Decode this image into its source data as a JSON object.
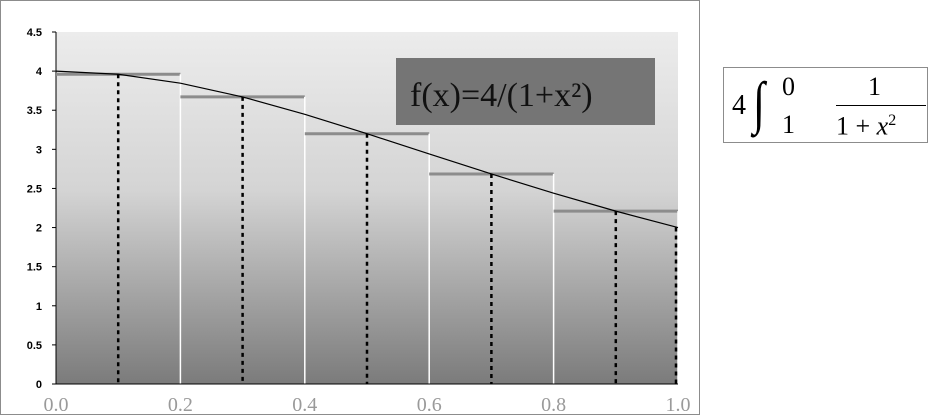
{
  "chart_data": {
    "type": "line",
    "function": {
      "annotation": "f(x)=4/(1+x²)"
    },
    "x_range": [
      0,
      1
    ],
    "ylim": [
      0,
      4.5
    ],
    "y_ticks": [
      "0",
      "0.5",
      "1",
      "1.5",
      "2",
      "2.5",
      "3",
      "3.5",
      "4",
      "4.5"
    ],
    "x_ticks": [
      "0.0",
      "0.2",
      "0.4",
      "0.6",
      "0.8",
      "1.0"
    ],
    "series": [
      {
        "x": [
          0,
          0.1,
          0.2,
          0.3,
          0.4,
          0.5,
          0.6,
          0.7,
          0.8,
          0.9,
          1.0
        ],
        "y": [
          4.0,
          3.96,
          3.846,
          3.67,
          3.448,
          3.2,
          2.941,
          2.685,
          2.439,
          2.21,
          2.0
        ]
      }
    ],
    "step_rectangles": [
      {
        "x0": 0.0,
        "x1": 0.2,
        "height": 3.96
      },
      {
        "x0": 0.2,
        "x1": 0.4,
        "height": 3.67
      },
      {
        "x0": 0.4,
        "x1": 0.6,
        "height": 3.2
      },
      {
        "x0": 0.6,
        "x1": 0.8,
        "height": 2.685
      },
      {
        "x0": 0.8,
        "x1": 1.0,
        "height": 2.21
      }
    ],
    "midpoints": [
      0.1,
      0.3,
      0.5,
      0.7,
      0.9
    ],
    "colors": {
      "step": "#8c8c8c",
      "curve": "#000000",
      "annotation_bg": "#757575"
    }
  },
  "formula": {
    "coefficient": "4",
    "integral_sign": "∫",
    "upper_limit": "0",
    "lower_limit": "1",
    "numerator": "1",
    "denominator_prefix": "1 + ",
    "denominator_var": "x",
    "denominator_exp": "2"
  }
}
